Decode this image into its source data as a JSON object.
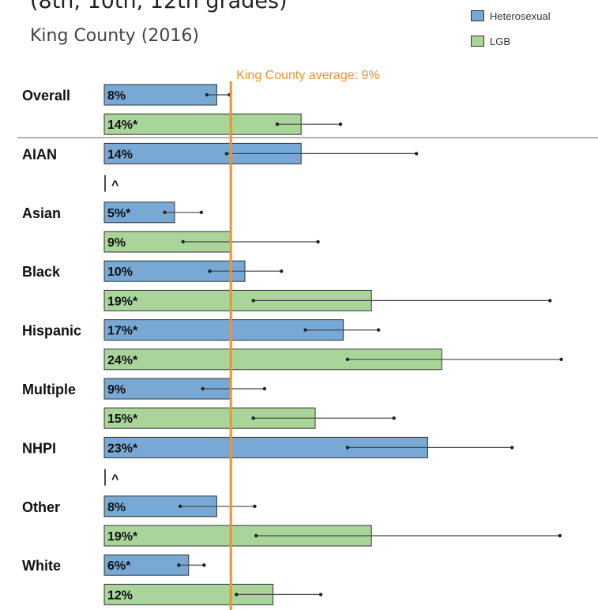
{
  "header": {
    "title_partial": "(8th, 10th, 12th grades)",
    "subtitle": "King County (2016)"
  },
  "colors": {
    "heterosexual": "#78a8d4",
    "lgb": "#a9d59a",
    "reference_line": "#f0932f"
  },
  "legend": [
    {
      "label": "Heterosexual",
      "color": "#78a8d4"
    },
    {
      "label": "LGB",
      "color": "#a9d59a"
    }
  ],
  "chart_data": {
    "type": "bar",
    "orientation": "horizontal",
    "reference_line": {
      "label": "King County average: 9%",
      "value": 9
    },
    "xlim": [
      0,
      33
    ],
    "series": [
      {
        "name": "Heterosexual",
        "color": "#78a8d4"
      },
      {
        "name": "LGB",
        "color": "#a9d59a"
      }
    ],
    "groups": [
      {
        "name": "Overall",
        "bars": [
          {
            "series": "Heterosexual",
            "value": 8,
            "label": "8%",
            "ci": [
              7.3,
              8.9
            ]
          },
          {
            "series": "LGB",
            "value": 14,
            "label": "14%*",
            "ci": [
              12.3,
              16.8
            ]
          }
        ]
      },
      {
        "name": "AIAN",
        "bars": [
          {
            "series": "Heterosexual",
            "value": 14,
            "label": "14%",
            "ci": [
              8.7,
              22.2
            ]
          },
          {
            "series": "LGB",
            "value": null,
            "label": "^"
          }
        ]
      },
      {
        "name": "Asian",
        "bars": [
          {
            "series": "Heterosexual",
            "value": 5,
            "label": "5%*",
            "ci": [
              4.3,
              6.9
            ]
          },
          {
            "series": "LGB",
            "value": 9,
            "label": "9%",
            "ci": [
              5.6,
              15.2
            ]
          }
        ]
      },
      {
        "name": "Black",
        "bars": [
          {
            "series": "Heterosexual",
            "value": 10,
            "label": "10%",
            "ci": [
              7.5,
              12.6
            ]
          },
          {
            "series": "LGB",
            "value": 19,
            "label": "19%*",
            "ci": [
              10.6,
              31.7
            ]
          }
        ]
      },
      {
        "name": "Hispanic",
        "bars": [
          {
            "series": "Heterosexual",
            "value": 17,
            "label": "17%*",
            "ci": [
              14.3,
              19.5
            ]
          },
          {
            "series": "LGB",
            "value": 24,
            "label": "24%*",
            "ci": [
              17.3,
              32.5
            ]
          }
        ]
      },
      {
        "name": "Multiple",
        "bars": [
          {
            "series": "Heterosexual",
            "value": 9,
            "label": "9%",
            "ci": [
              7.0,
              11.4
            ]
          },
          {
            "series": "LGB",
            "value": 15,
            "label": "15%*",
            "ci": [
              10.6,
              20.6
            ]
          }
        ]
      },
      {
        "name": "NHPI",
        "bars": [
          {
            "series": "Heterosexual",
            "value": 23,
            "label": "23%*",
            "ci": [
              17.3,
              29.0
            ]
          },
          {
            "series": "LGB",
            "value": null,
            "label": "^"
          }
        ]
      },
      {
        "name": "Other",
        "bars": [
          {
            "series": "Heterosexual",
            "value": 8,
            "label": "8%",
            "ci": [
              5.4,
              10.7
            ]
          },
          {
            "series": "LGB",
            "value": 19,
            "label": "19%*",
            "ci": [
              10.8,
              32.4
            ]
          }
        ]
      },
      {
        "name": "White",
        "bars": [
          {
            "series": "Heterosexual",
            "value": 6,
            "label": "6%*",
            "ci": [
              5.3,
              7.1
            ]
          },
          {
            "series": "LGB",
            "value": 12,
            "label": "12%",
            "ci": [
              9.4,
              15.4
            ]
          }
        ]
      }
    ]
  }
}
